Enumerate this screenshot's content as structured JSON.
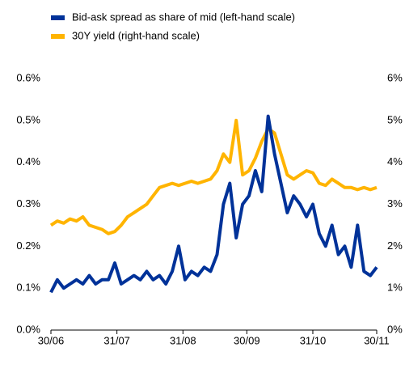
{
  "chart_data": {
    "type": "line",
    "legend": "top-left",
    "x": [
      "30/06",
      "03/07",
      "06/07",
      "09/07",
      "12/07",
      "15/07",
      "18/07",
      "21/07",
      "24/07",
      "27/07",
      "30/07",
      "02/08",
      "05/08",
      "08/08",
      "11/08",
      "14/08",
      "17/08",
      "20/08",
      "23/08",
      "26/08",
      "29/08",
      "01/09",
      "04/09",
      "07/09",
      "10/09",
      "13/09",
      "16/09",
      "19/09",
      "22/09",
      "25/09",
      "28/09",
      "01/10",
      "04/10",
      "07/10",
      "10/10",
      "13/10",
      "16/10",
      "19/10",
      "22/10",
      "25/10",
      "28/10",
      "31/10",
      "03/11",
      "06/11",
      "09/11",
      "12/11",
      "15/11",
      "18/11",
      "21/11",
      "24/11",
      "27/11",
      "30/11"
    ],
    "xlim": [
      "30/06",
      "30/11"
    ],
    "xticks": [
      "30/06",
      "31/07",
      "31/08",
      "30/09",
      "31/10",
      "30/11"
    ],
    "series": [
      {
        "name": "Bid-ask spread as share of mid (left-hand scale)",
        "color": "#003299",
        "values": [
          0.09,
          0.12,
          0.1,
          0.11,
          0.12,
          0.11,
          0.13,
          0.11,
          0.12,
          0.12,
          0.16,
          0.11,
          0.12,
          0.13,
          0.12,
          0.14,
          0.12,
          0.13,
          0.11,
          0.14,
          0.2,
          0.12,
          0.14,
          0.13,
          0.15,
          0.14,
          0.18,
          0.3,
          0.35,
          0.22,
          0.3,
          0.32,
          0.38,
          0.33,
          0.51,
          0.42,
          0.35,
          0.28,
          0.32,
          0.3,
          0.27,
          0.3,
          0.23,
          0.2,
          0.25,
          0.18,
          0.2,
          0.15,
          0.25,
          0.14,
          0.13,
          0.15
        ]
      },
      {
        "name": "30Y yield (right-hand scale)",
        "color": "#ffb400",
        "axis": "y2",
        "values": [
          2.5,
          2.6,
          2.55,
          2.65,
          2.6,
          2.7,
          2.5,
          2.45,
          2.4,
          2.3,
          2.35,
          2.5,
          2.7,
          2.8,
          2.9,
          3.0,
          3.2,
          3.4,
          3.45,
          3.5,
          3.45,
          3.5,
          3.55,
          3.5,
          3.55,
          3.6,
          3.8,
          4.2,
          4.0,
          5.0,
          3.7,
          3.8,
          4.1,
          4.5,
          4.8,
          4.7,
          4.2,
          3.7,
          3.6,
          3.7,
          3.8,
          3.75,
          3.5,
          3.45,
          3.6,
          3.5,
          3.4,
          3.4,
          3.35,
          3.4,
          3.35,
          3.4
        ]
      }
    ],
    "ylim": [
      0,
      0.6
    ],
    "yticks": [
      {
        "value": 0,
        "label": "0.0%"
      },
      {
        "value": 0.1,
        "label": "0.1%"
      },
      {
        "value": 0.2,
        "label": "0.2%"
      },
      {
        "value": 0.3,
        "label": "0.3%"
      },
      {
        "value": 0.4,
        "label": "0.4%"
      },
      {
        "value": 0.5,
        "label": "0.5%"
      },
      {
        "value": 0.6,
        "label": "0.6%"
      }
    ],
    "y2lim": [
      0,
      6
    ],
    "y2ticks": [
      {
        "value": 0,
        "label": "0%"
      },
      {
        "value": 1,
        "label": "1%"
      },
      {
        "value": 2,
        "label": "2%"
      },
      {
        "value": 3,
        "label": "3%"
      },
      {
        "value": 4,
        "label": "4%"
      },
      {
        "value": 5,
        "label": "5%"
      },
      {
        "value": 6,
        "label": "6%"
      }
    ]
  }
}
